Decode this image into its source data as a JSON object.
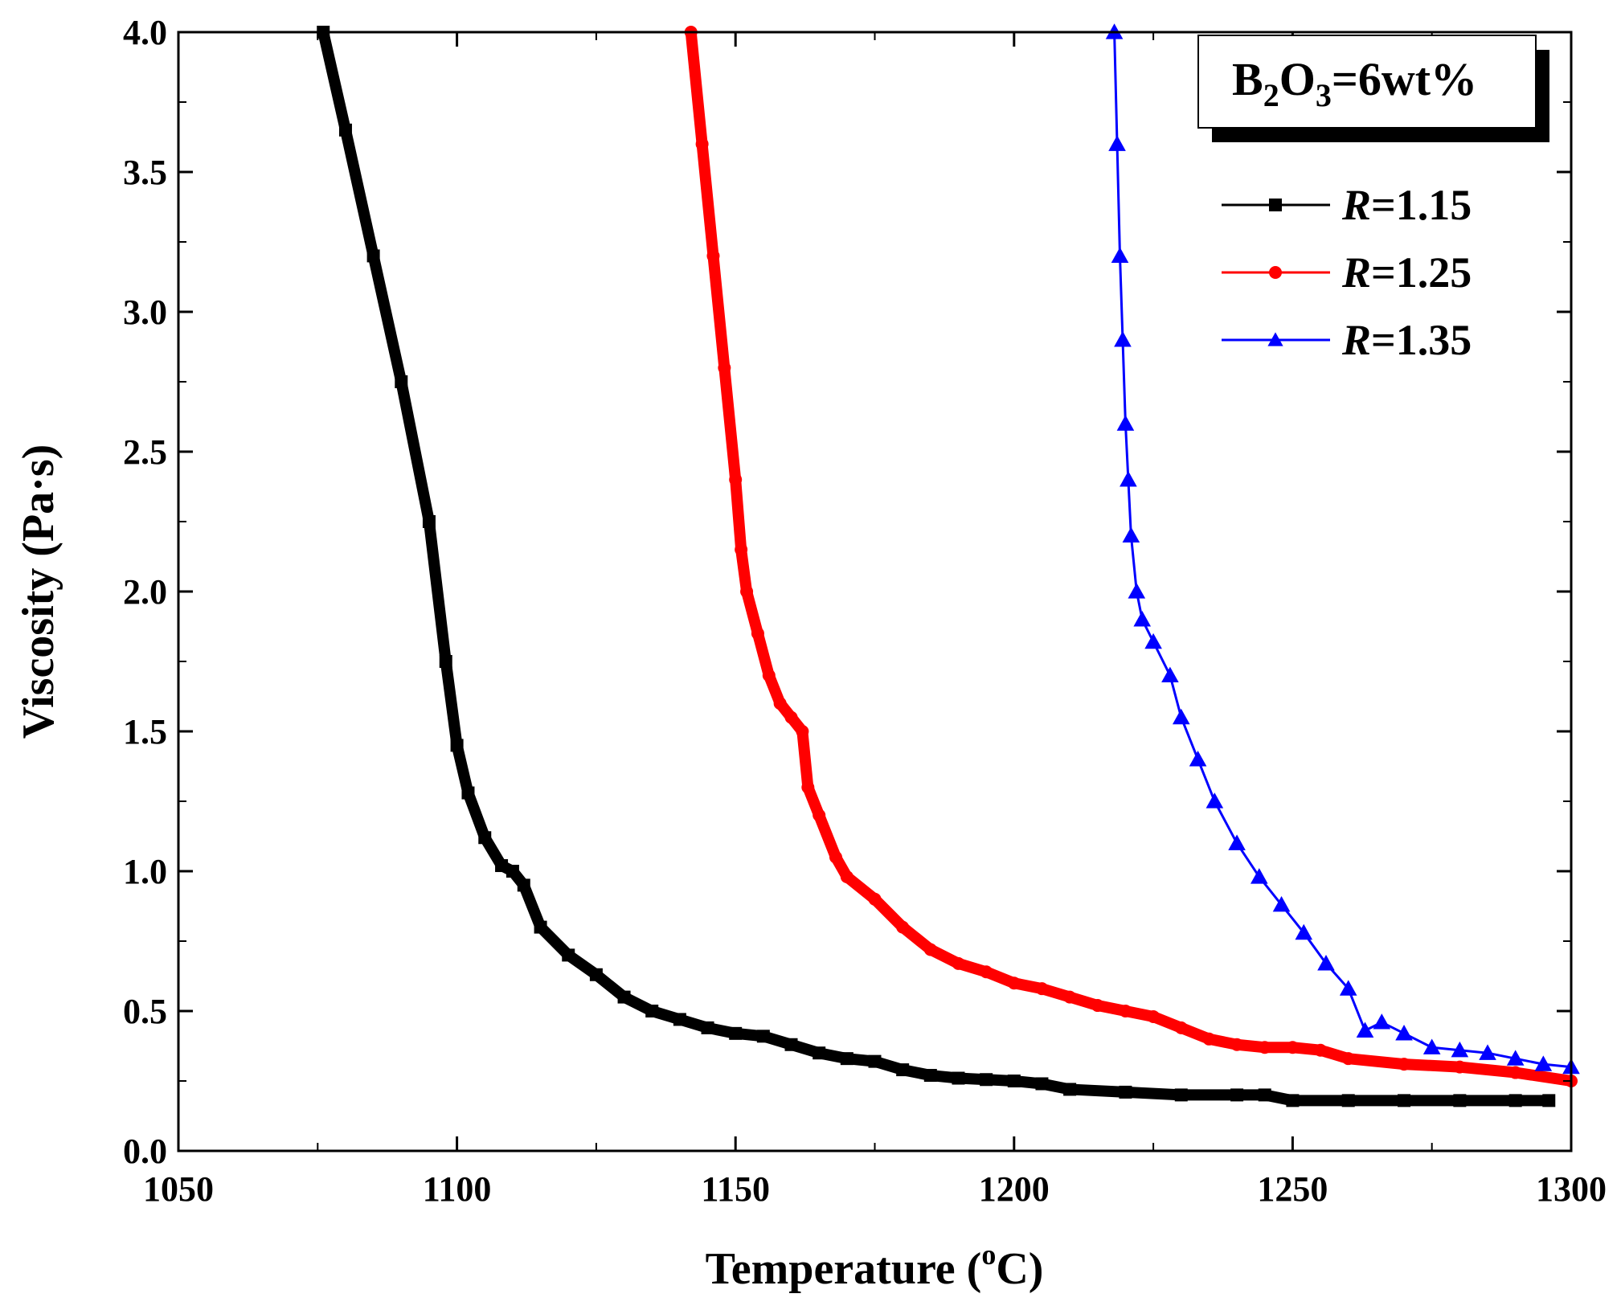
{
  "chart_data": {
    "type": "line",
    "title": "",
    "xlabel": "Temperature (",
    "xlabel_sup": "o",
    "xlabel_unit": "C)",
    "ylabel": "Viscosity (Pa·s)",
    "xlim": [
      1050,
      1300
    ],
    "ylim": [
      0.0,
      4.0
    ],
    "x_ticks": [
      "1050",
      "1100",
      "1150",
      "1200",
      "1250",
      "1300"
    ],
    "y_ticks": [
      "0.0",
      "0.5",
      "1.0",
      "1.5",
      "2.0",
      "2.5",
      "3.0",
      "3.5",
      "4.0"
    ],
    "annotation": {
      "B": "B",
      "sub1": "2",
      "O": "O",
      "sub2": "3",
      "rest": "=6wt%"
    },
    "legend_position": "top-right",
    "series": [
      {
        "name": "R=1.15",
        "label_var": "R",
        "label_val": "=1.15",
        "color": "#000000",
        "marker": "square",
        "x": [
          1076,
          1080,
          1085,
          1090,
          1095,
          1098,
          1100,
          1102,
          1105,
          1108,
          1110,
          1112,
          1115,
          1120,
          1125,
          1130,
          1135,
          1140,
          1145,
          1150,
          1155,
          1160,
          1165,
          1170,
          1175,
          1180,
          1185,
          1190,
          1195,
          1200,
          1205,
          1210,
          1220,
          1230,
          1240,
          1245,
          1250,
          1260,
          1270,
          1280,
          1290,
          1296
        ],
        "y": [
          4.0,
          3.65,
          3.2,
          2.75,
          2.25,
          1.75,
          1.45,
          1.28,
          1.12,
          1.02,
          1.0,
          0.95,
          0.8,
          0.7,
          0.63,
          0.55,
          0.5,
          0.47,
          0.44,
          0.42,
          0.41,
          0.38,
          0.35,
          0.33,
          0.32,
          0.29,
          0.27,
          0.26,
          0.255,
          0.25,
          0.24,
          0.22,
          0.21,
          0.2,
          0.2,
          0.2,
          0.18,
          0.18,
          0.18,
          0.18,
          0.18,
          0.18
        ]
      },
      {
        "name": "R=1.25",
        "label_var": "R",
        "label_val": "=1.25",
        "color": "#ff0000",
        "marker": "circle",
        "x": [
          1142,
          1144,
          1146,
          1148,
          1150,
          1151,
          1152,
          1154,
          1156,
          1158,
          1160,
          1162,
          1163,
          1165,
          1168,
          1170,
          1175,
          1180,
          1185,
          1190,
          1195,
          1200,
          1205,
          1210,
          1215,
          1220,
          1225,
          1230,
          1235,
          1240,
          1245,
          1250,
          1255,
          1260,
          1270,
          1280,
          1290,
          1300
        ],
        "y": [
          4.0,
          3.6,
          3.2,
          2.8,
          2.4,
          2.15,
          2.0,
          1.85,
          1.7,
          1.6,
          1.55,
          1.5,
          1.3,
          1.2,
          1.05,
          0.98,
          0.9,
          0.8,
          0.72,
          0.67,
          0.64,
          0.6,
          0.58,
          0.55,
          0.52,
          0.5,
          0.48,
          0.44,
          0.4,
          0.38,
          0.37,
          0.37,
          0.36,
          0.33,
          0.31,
          0.3,
          0.28,
          0.25
        ]
      },
      {
        "name": "R=1.35",
        "label_var": "R",
        "label_val": "=1.35",
        "color": "#0000ff",
        "marker": "triangle",
        "x": [
          1218,
          1218.5,
          1219,
          1219.5,
          1220,
          1220.5,
          1221,
          1222,
          1223,
          1225,
          1228,
          1230,
          1233,
          1236,
          1240,
          1244,
          1248,
          1252,
          1256,
          1260,
          1263,
          1266,
          1270,
          1275,
          1280,
          1285,
          1290,
          1295,
          1300
        ],
        "y": [
          4.0,
          3.6,
          3.2,
          2.9,
          2.6,
          2.4,
          2.2,
          2.0,
          1.9,
          1.82,
          1.7,
          1.55,
          1.4,
          1.25,
          1.1,
          0.98,
          0.88,
          0.78,
          0.67,
          0.58,
          0.43,
          0.46,
          0.42,
          0.37,
          0.36,
          0.35,
          0.33,
          0.31,
          0.3
        ]
      }
    ]
  }
}
